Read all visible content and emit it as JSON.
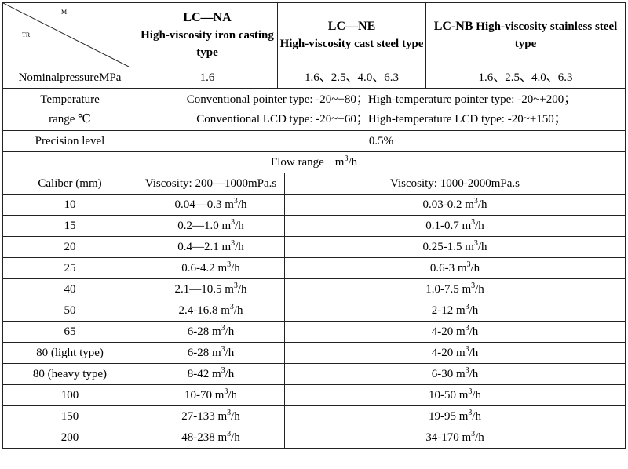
{
  "header": {
    "diag_top": "M",
    "diag_bottom": "TR",
    "models": [
      {
        "code": "LC—NA",
        "desc": "High-viscosity iron casting type"
      },
      {
        "code": "LC—NE",
        "desc": "High-viscosity cast steel type"
      },
      {
        "code": "LC-NB",
        "desc": "High-viscosity stainless steel type"
      }
    ]
  },
  "pressure": {
    "label": "NominalpressureMPa",
    "values": [
      "1.6",
      "1.6、2.5、4.0、6.3",
      "1.6、2.5、4.0、6.3"
    ]
  },
  "temperature": {
    "label_line1": "Temperature",
    "label_line2": "range ℃",
    "line1": "Conventional pointer type: -20~+80；High-temperature pointer type: -20~+200；",
    "line2": "Conventional LCD type: -20~+60；High-temperature LCD type: -20~+150；"
  },
  "precision": {
    "label": "Precision level",
    "value": "0.5%"
  },
  "flow": {
    "title": "Flow range",
    "unit_base": "m",
    "unit_exp": "3",
    "unit_tail": "/h"
  },
  "caliber_header": {
    "label": "Caliber (mm)",
    "col1": "Viscosity: 200—1000mPa.s",
    "col2": "Viscosity: 1000-2000mPa.s"
  },
  "unit": {
    "base": " m",
    "exp": "3",
    "tail": "/h"
  },
  "rows": [
    {
      "caliber": "10",
      "low": "0.04—0.3",
      "high": "0.03-0.2"
    },
    {
      "caliber": "15",
      "low": "0.2—1.0",
      "high": "0.1-0.7"
    },
    {
      "caliber": "20",
      "low": "0.4—2.1",
      "high": "0.25-1.5"
    },
    {
      "caliber": "25",
      "low": "0.6-4.2",
      "high": "0.6-3"
    },
    {
      "caliber": "40",
      "low": "2.1—10.5",
      "high": "1.0-7.5"
    },
    {
      "caliber": "50",
      "low": "2.4-16.8",
      "high": "2-12"
    },
    {
      "caliber": "65",
      "low": "6-28",
      "high": "4-20"
    },
    {
      "caliber": "80 (light type)",
      "low": "6-28",
      "high": "4-20"
    },
    {
      "caliber": "80 (heavy type)",
      "low": "8-42",
      "high": "6-30"
    },
    {
      "caliber": "100",
      "low": "10-70",
      "high": "10-50"
    },
    {
      "caliber": "150",
      "low": "27-133",
      "high": "19-95"
    },
    {
      "caliber": "200",
      "low": "48-238",
      "high": "34-170"
    }
  ]
}
